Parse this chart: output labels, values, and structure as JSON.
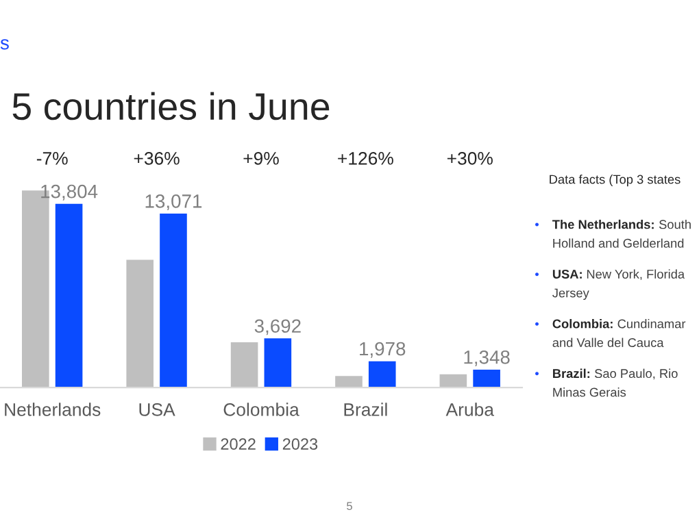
{
  "chart_data": {
    "type": "bar",
    "title": "5 countries in June",
    "categories": [
      "Netherlands",
      "USA",
      "Colombia",
      "Brazil",
      "Aruba"
    ],
    "series": [
      {
        "name": "2022",
        "color": "#bfbfbf",
        "values": [
          14800,
          9600,
          3400,
          870,
          1000
        ]
      },
      {
        "name": "2023",
        "color": "#0a4bff",
        "values": [
          13804,
          13071,
          3692,
          1978,
          1348
        ],
        "value_labels": [
          "13,804",
          "13,071",
          "3,692",
          "1,978",
          "1,348"
        ]
      }
    ],
    "grid": false,
    "legend": "bottom",
    "annotations": [
      "-7%",
      "+36%",
      "+9%",
      "+126%",
      "+30%",
      "s",
      "Data facts (Top 3 states",
      "• The Netherlands: South\nHolland and Gelderland",
      "• USA: New York, Florida\nJersey",
      "• Colombia: Cundinamar\nand Valle del Cauca",
      "• Brazil: Sao Paulo, Rio\nMinas Gerais",
      "5"
    ]
  }
}
